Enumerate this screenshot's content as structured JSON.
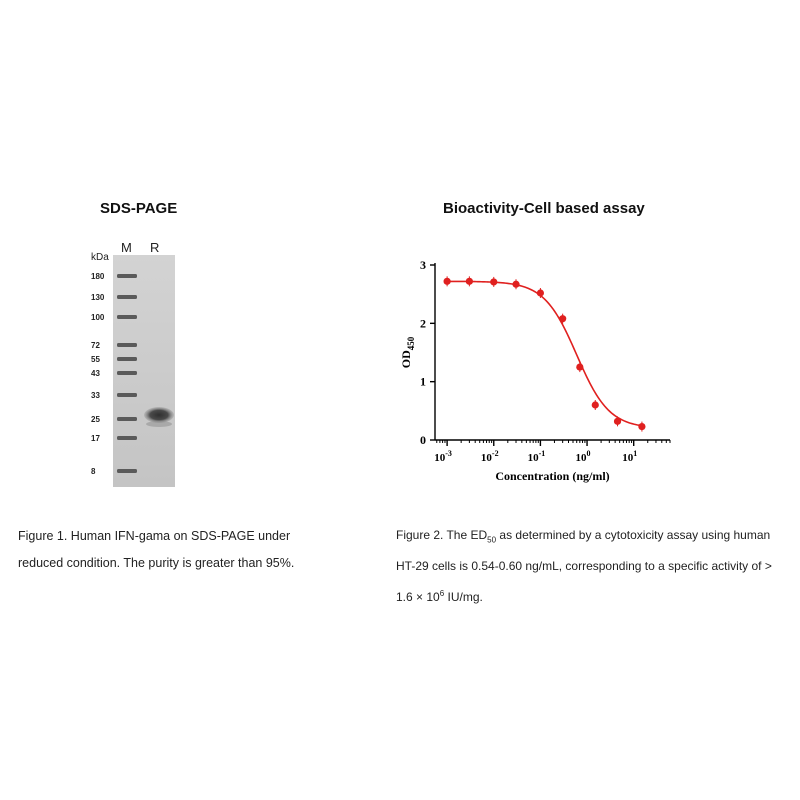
{
  "left_panel": {
    "title": "SDS-PAGE",
    "unit_label": "kDa",
    "lane_labels": [
      "M",
      "R"
    ],
    "marker_labels": [
      "180",
      "130",
      "100",
      "72",
      "55",
      "43",
      "33",
      "25",
      "17",
      "8"
    ],
    "caption_line1": "Figure 1. Human IFN-gama on SDS-PAGE under",
    "caption_line2": "reduced condition. The purity is greater than 95%."
  },
  "right_panel": {
    "title": "Bioactivity-Cell based assay",
    "caption": {
      "l1_pre": "Figure 2. The ED",
      "l1_sub": "50",
      "l1_post": " as determined by a cytotoxicity assay using human",
      "l2": "HT-29 cells is 0.54-0.60 ng/mL, corresponding to a specific activity of >",
      "l3_pre": "1.6 × 10",
      "l3_sup": "6",
      "l3_post": " IU/mg."
    }
  },
  "chart_data": {
    "type": "scatter",
    "xlabel": "Concentration (ng/ml)",
    "ylabel_main": "OD",
    "ylabel_sub": "450",
    "xscale": "log",
    "xlim": [
      0.00055,
      60
    ],
    "ylim": [
      0,
      3
    ],
    "yticks": [
      0,
      1,
      2,
      3
    ],
    "xticks": [
      {
        "value": 0.001,
        "base": "10",
        "exp": "-3"
      },
      {
        "value": 0.01,
        "base": "10",
        "exp": "-2"
      },
      {
        "value": 0.1,
        "base": "10",
        "exp": "-1"
      },
      {
        "value": 1,
        "base": "10",
        "exp": "0"
      },
      {
        "value": 10,
        "base": "10",
        "exp": "1"
      }
    ],
    "series": [
      {
        "color": "#e0201f",
        "x": [
          0.001,
          0.003,
          0.01,
          0.03,
          0.1,
          0.3,
          0.7,
          1.5,
          4.5,
          15
        ],
        "y": [
          2.72,
          2.72,
          2.71,
          2.67,
          2.52,
          2.08,
          1.25,
          0.6,
          0.32,
          0.23
        ]
      }
    ],
    "fit": {
      "top": 2.72,
      "bottom": 0.2,
      "ec50": 0.6,
      "hill": 1.25
    }
  }
}
